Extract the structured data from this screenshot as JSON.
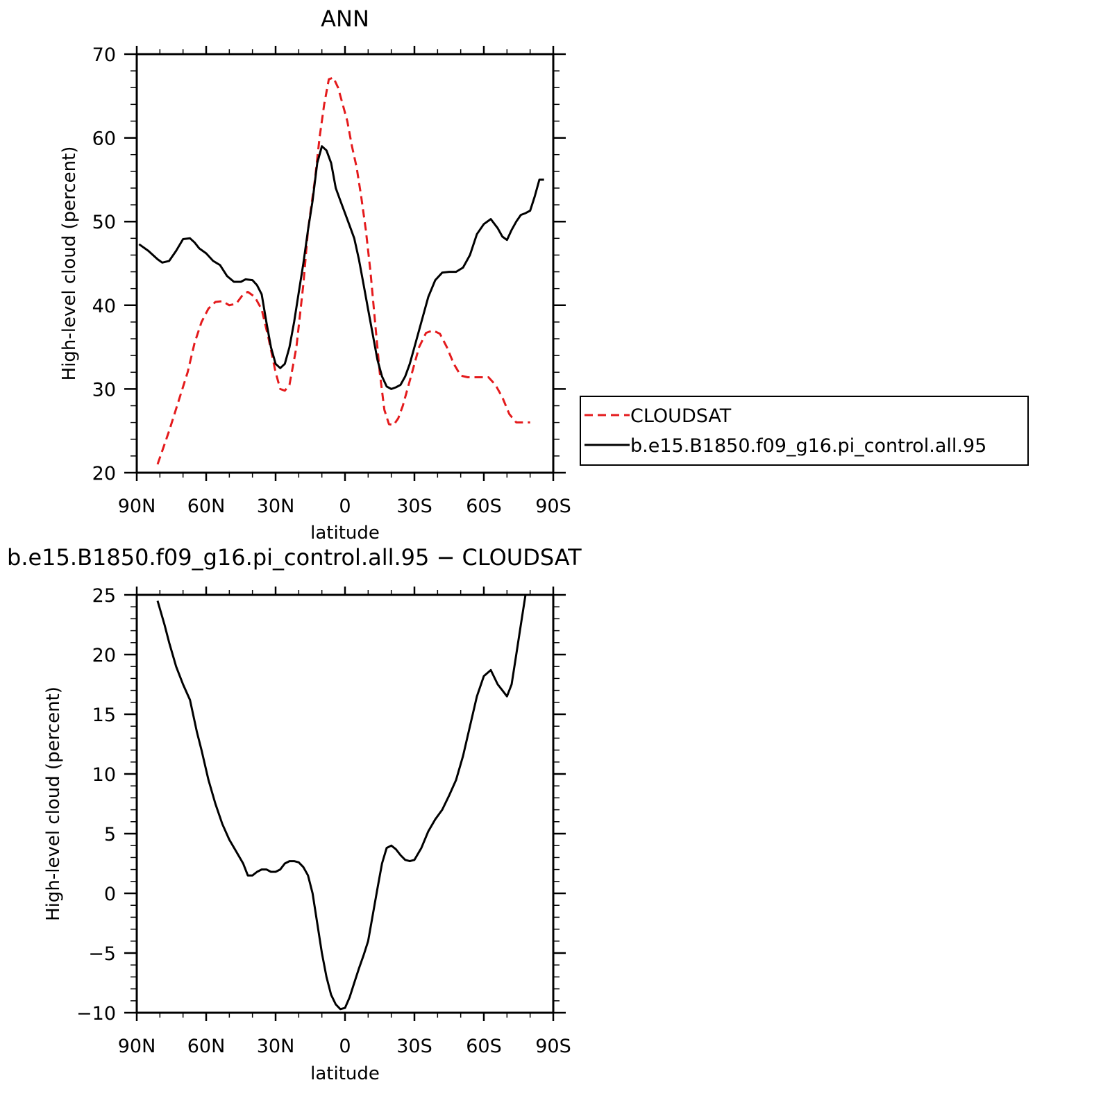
{
  "chart_data": [
    {
      "type": "line",
      "title": "ANN",
      "xlabel": "latitude",
      "ylabel": "High-level cloud (percent)",
      "xlim": [
        90,
        -90
      ],
      "ylim": [
        20,
        70
      ],
      "xticks": [
        {
          "value": 90,
          "label": "90N"
        },
        {
          "value": 60,
          "label": "60N"
        },
        {
          "value": 30,
          "label": "30N"
        },
        {
          "value": 0,
          "label": "0"
        },
        {
          "value": -30,
          "label": "30S"
        },
        {
          "value": -60,
          "label": "60S"
        },
        {
          "value": -90,
          "label": "90S"
        }
      ],
      "yticks": [
        {
          "value": 20,
          "label": "20"
        },
        {
          "value": 30,
          "label": "30"
        },
        {
          "value": 40,
          "label": "40"
        },
        {
          "value": 50,
          "label": "50"
        },
        {
          "value": 60,
          "label": "60"
        },
        {
          "value": 70,
          "label": "70"
        }
      ],
      "legend_position": "right",
      "series": [
        {
          "name": "CLOUDSAT",
          "color": "#e41a1c",
          "dash": "dashed",
          "x": [
            81,
            76,
            72,
            68,
            65,
            62,
            59,
            56,
            53,
            50,
            47,
            44,
            42,
            39,
            36,
            33,
            30,
            28,
            26,
            24,
            21,
            18,
            16,
            13,
            11,
            9,
            7,
            5,
            3,
            1,
            -1,
            -3,
            -5,
            -7,
            -9,
            -11,
            -13,
            -15,
            -17,
            -19,
            -21,
            -23,
            -25,
            -27,
            -29,
            -32,
            -35,
            -38,
            -41,
            -44,
            -47,
            -50,
            -53,
            -56,
            -59,
            -62,
            -65,
            -68,
            -71,
            -74,
            -77,
            -80
          ],
          "values": [
            21,
            25,
            28.5,
            32,
            35.5,
            38,
            39.6,
            40.4,
            40.5,
            40,
            40.2,
            41.3,
            41.6,
            41,
            39.5,
            36,
            32,
            30,
            29.8,
            30.5,
            35,
            42.5,
            49,
            55,
            60,
            64,
            67,
            67.2,
            66,
            64,
            62,
            59,
            56.5,
            53,
            49,
            44,
            38,
            32,
            27.5,
            25.8,
            25.7,
            26.5,
            28,
            30,
            32,
            35,
            36.7,
            37,
            36.6,
            35,
            33,
            31.6,
            31.4,
            31.4,
            31.4,
            31.4,
            30.5,
            29,
            27,
            26,
            26,
            26
          ]
        },
        {
          "name": "b.e15.B1850.f09_g16.pi_control.all.95",
          "color": "#000000",
          "dash": "solid",
          "x": [
            89,
            85,
            81,
            79,
            76,
            73,
            70,
            67,
            65,
            63,
            60,
            57,
            54,
            51,
            48,
            45,
            43,
            40,
            38,
            36,
            34,
            32,
            30,
            28,
            26,
            24,
            22,
            20,
            18,
            16,
            14,
            12,
            10,
            8,
            6,
            4,
            2,
            0,
            -2,
            -4,
            -6,
            -8,
            -10,
            -12,
            -14,
            -16,
            -18,
            -20,
            -22,
            -24,
            -26,
            -28,
            -30,
            -33,
            -36,
            -39,
            -42,
            -45,
            -48,
            -51,
            -54,
            -57,
            -60,
            -63,
            -66,
            -68,
            -70,
            -72,
            -74,
            -76,
            -78,
            -80,
            -82,
            -84,
            -86
          ],
          "values": [
            47.3,
            46.5,
            45.5,
            45.1,
            45.3,
            46.5,
            47.9,
            48,
            47.5,
            46.8,
            46.2,
            45.3,
            44.8,
            43.5,
            42.8,
            42.8,
            43.1,
            43,
            42.4,
            41.3,
            38,
            35,
            33,
            32.5,
            33,
            35,
            38,
            41.5,
            45,
            49,
            52.5,
            57,
            59,
            58.5,
            57,
            54,
            52.5,
            51,
            49.5,
            48,
            45.5,
            42.5,
            39.5,
            36.5,
            33.5,
            31.5,
            30.3,
            30,
            30.2,
            30.5,
            31.5,
            33,
            35,
            38,
            41,
            43,
            43.9,
            44,
            44,
            44.5,
            46,
            48.5,
            49.7,
            50.3,
            49.2,
            48.2,
            47.8,
            49,
            50,
            50.8,
            51,
            51.3,
            53,
            55,
            55
          ]
        }
      ]
    },
    {
      "type": "line",
      "title": "b.e15.B1850.f09_g16.pi_control.all.95 − CLOUDSAT",
      "xlabel": "latitude",
      "ylabel": "High-level cloud (percent)",
      "xlim": [
        90,
        -90
      ],
      "ylim": [
        -10,
        25
      ],
      "xticks": [
        {
          "value": 90,
          "label": "90N"
        },
        {
          "value": 60,
          "label": "60N"
        },
        {
          "value": 30,
          "label": "30N"
        },
        {
          "value": 0,
          "label": "0"
        },
        {
          "value": -30,
          "label": "30S"
        },
        {
          "value": -60,
          "label": "60S"
        },
        {
          "value": -90,
          "label": "90S"
        }
      ],
      "yticks": [
        {
          "value": -10,
          "label": "−10"
        },
        {
          "value": -5,
          "label": "−5"
        },
        {
          "value": 0,
          "label": "0"
        },
        {
          "value": 5,
          "label": "5"
        },
        {
          "value": 10,
          "label": "10"
        },
        {
          "value": 15,
          "label": "15"
        },
        {
          "value": 20,
          "label": "20"
        },
        {
          "value": 25,
          "label": "25"
        }
      ],
      "series": [
        {
          "color": "#000000",
          "dash": "solid",
          "x": [
            81,
            78,
            76,
            73,
            70,
            67,
            64,
            62,
            59,
            56,
            53,
            50,
            47,
            44,
            42,
            40,
            38,
            36,
            34,
            32,
            30,
            28,
            26,
            24,
            22,
            20,
            18,
            16,
            14,
            12,
            10,
            8,
            6,
            4,
            2,
            0,
            -2,
            -4,
            -6,
            -8,
            -10,
            -12,
            -14,
            -16,
            -18,
            -20,
            -22,
            -24,
            -26,
            -28,
            -30,
            -33,
            -36,
            -39,
            -42,
            -45,
            -48,
            -51,
            -54,
            -57,
            -60,
            -63,
            -66,
            -68,
            -70,
            -72,
            -74,
            -76,
            -78,
            -80
          ],
          "values": [
            24.5,
            22.5,
            21,
            19,
            17.5,
            16.2,
            13.5,
            12,
            9.5,
            7.5,
            5.8,
            4.5,
            3.5,
            2.5,
            1.5,
            1.5,
            1.8,
            2,
            2,
            1.8,
            1.8,
            2,
            2.5,
            2.7,
            2.7,
            2.6,
            2.2,
            1.5,
            0,
            -2.5,
            -5,
            -7,
            -8.5,
            -9.3,
            -9.7,
            -9.6,
            -8.7,
            -7.5,
            -6.3,
            -5.2,
            -4,
            -1.8,
            0.4,
            2.5,
            3.8,
            4,
            3.7,
            3.2,
            2.8,
            2.7,
            2.8,
            3.8,
            5.2,
            6.2,
            7,
            8.2,
            9.5,
            11.5,
            14,
            16.5,
            18.2,
            18.7,
            17.5,
            17,
            16.5,
            17.5,
            20,
            22.5,
            25,
            25
          ]
        }
      ]
    }
  ]
}
